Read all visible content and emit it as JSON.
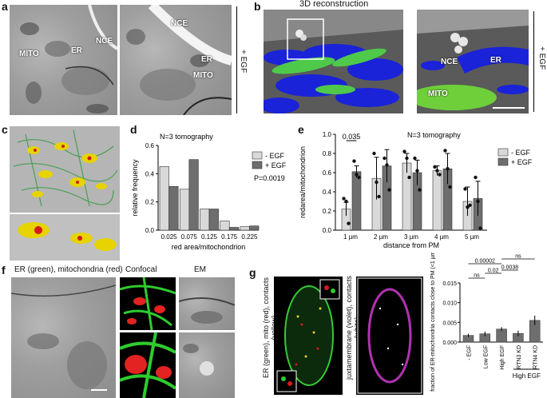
{
  "panel_a": {
    "label": "a",
    "left": {
      "mito": "MITO",
      "er": "ER",
      "nce": "NCE"
    },
    "right": {
      "nce": "NCE",
      "er": "ER",
      "mito": "MITO"
    },
    "side_label": "+ EGF"
  },
  "panel_b": {
    "label": "b",
    "title": "3D reconstruction",
    "nce": "NCE",
    "er": "ER",
    "mito": "MITO",
    "side_label": "+ EGF"
  },
  "panel_c": {
    "label": "c"
  },
  "panel_d": {
    "label": "d"
  },
  "panel_e": {
    "label": "e"
  },
  "panel_f": {
    "label": "f",
    "heading": "ER (green), mitochondria (red)",
    "confocal": "Confocal",
    "em": "EM"
  },
  "panel_g": {
    "label": "g",
    "img1_label": "ER (green), mito (red), contacts (yellow)",
    "img2_label": "juxtamembrane (violet), contacts (white)"
  },
  "chart_data": [
    {
      "panel": "d",
      "type": "bar",
      "title": "N=3 tomography",
      "xlabel": "red area/mitochondrion",
      "ylabel": "relative frequency",
      "categories": [
        "0.025",
        "0.075",
        "0.125",
        "0.175",
        "0.225"
      ],
      "series": [
        {
          "name": "- EGF",
          "color": "#d9d9d9",
          "values": [
            0.45,
            0.29,
            0.15,
            0.065,
            0.025
          ]
        },
        {
          "name": "+ EGF",
          "color": "#6e6e6e",
          "values": [
            0.31,
            0.5,
            0.15,
            0.02,
            0.03
          ]
        }
      ],
      "pvalue": "P=0.0019",
      "ylim": [
        0,
        0.6
      ],
      "yticks": [
        "0.0",
        "0.2",
        "0.4",
        "0.6"
      ]
    },
    {
      "panel": "e",
      "type": "bar",
      "title": "N=3 tomography",
      "xlabel": "distance from PM",
      "ylabel": "redarea/mitochondrion",
      "categories": [
        "1 µm",
        "2 µm",
        "3 µm",
        "4 µm",
        "5 µm"
      ],
      "series": [
        {
          "name": "- EGF",
          "color": "#d9d9d9",
          "values": [
            0.22,
            0.54,
            0.7,
            0.62,
            0.3
          ],
          "err": [
            0.07,
            0.22,
            0.1,
            0.05,
            0.15
          ],
          "points": [
            [
              0.33,
              0.3,
              0.07
            ],
            [
              0.8,
              0.5,
              0.35
            ],
            [
              0.82,
              0.75,
              0.55
            ],
            [
              0.66,
              0.62,
              0.58
            ],
            [
              0.43,
              0.24,
              0.26
            ]
          ]
        },
        {
          "name": "+ EGF",
          "color": "#6e6e6e",
          "values": [
            0.61,
            0.67,
            0.6,
            0.64,
            0.33
          ],
          "err": [
            0.06,
            0.17,
            0.13,
            0.16,
            0.18
          ],
          "points": [
            [
              0.72,
              0.58,
              0.55
            ],
            [
              0.75,
              0.68,
              0.42
            ],
            [
              0.75,
              0.62,
              0.42
            ],
            [
              0.83,
              0.64,
              0.45
            ],
            [
              0.55,
              0.3,
              0.02
            ]
          ]
        }
      ],
      "significance": "0.035",
      "ylim": [
        0,
        1.0
      ],
      "yticks": [
        "0.0",
        "0.2",
        "0.4",
        "0.6",
        "0.8",
        "1.0"
      ]
    },
    {
      "panel": "g",
      "type": "bar",
      "ylabel": "fraction of ER-mitochondria contacts close to PM (<1 µm)",
      "categories": [
        "- EGF",
        "Low EGF",
        "High EGF",
        "RTN3 KD",
        "RTN4 KD"
      ],
      "group_label": "High EGF",
      "values": [
        0.0017,
        0.0021,
        0.0033,
        0.0022,
        0.0055
      ],
      "err": [
        0.0004,
        0.0006,
        0.0005,
        0.0007,
        0.0012
      ],
      "ylim": [
        0,
        0.015
      ],
      "yticks": [
        "0.000",
        "0.005",
        "0.010",
        "0.015"
      ],
      "comparisons": [
        "0.00002",
        "ns",
        "0.02",
        "0.0038",
        "ns"
      ]
    }
  ]
}
